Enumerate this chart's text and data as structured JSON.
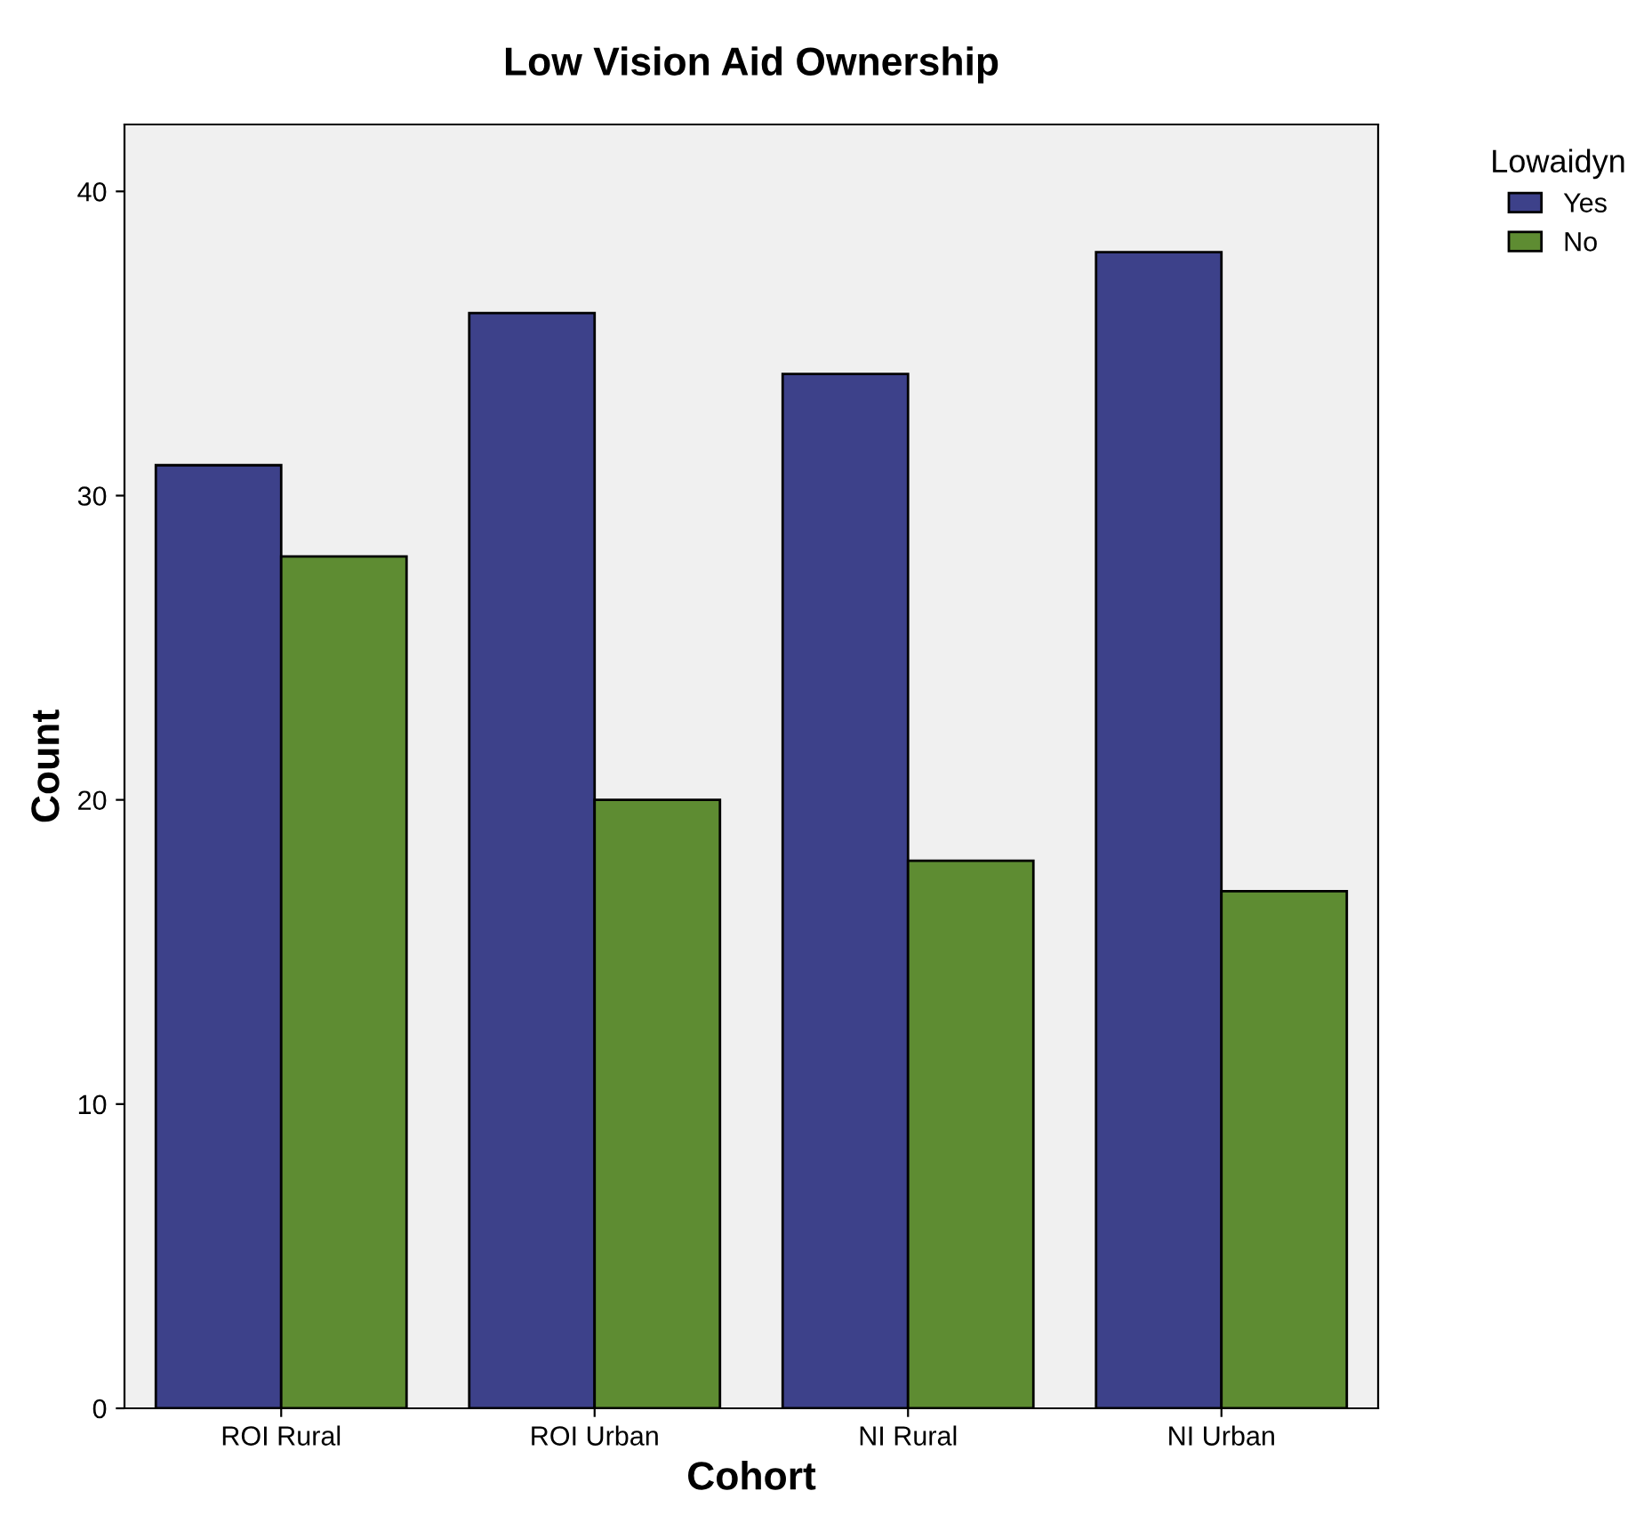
{
  "chart_data": {
    "type": "bar",
    "title": "Low Vision Aid Ownership",
    "xlabel": "Cohort",
    "ylabel": "Count",
    "legend_title": "Lowaidyn",
    "categories": [
      "ROI Rural",
      "ROI Urban",
      "NI Rural",
      "NI Urban"
    ],
    "series": [
      {
        "name": "Yes",
        "color": "#3d418a",
        "values": [
          31,
          36,
          34,
          38
        ]
      },
      {
        "name": "No",
        "color": "#5e8c32",
        "values": [
          28,
          20,
          18,
          17
        ]
      }
    ],
    "ylim": [
      0,
      42.2
    ],
    "yticks": [
      0,
      10,
      20,
      30,
      40
    ],
    "grid": false,
    "legend": "top right"
  }
}
